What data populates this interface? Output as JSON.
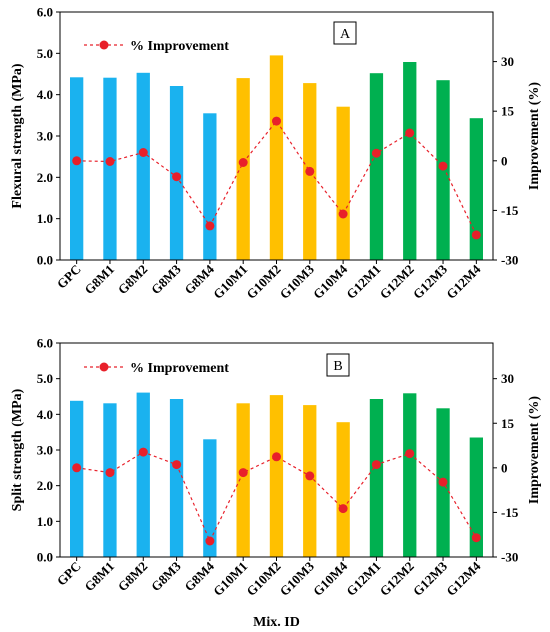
{
  "colors": {
    "G8": "#1ab2ef",
    "G10": "#ffc000",
    "G12": "#00b050",
    "line": "#e8202a"
  },
  "shared": {
    "categories": [
      "GPC",
      "G8M1",
      "G8M2",
      "G8M3",
      "G8M4",
      "G10M1",
      "G10M2",
      "G10M3",
      "G10M4",
      "G12M1",
      "G12M2",
      "G12M3",
      "G12M4"
    ],
    "group_of_category": [
      "G8",
      "G8",
      "G8",
      "G8",
      "G8",
      "G10",
      "G10",
      "G10",
      "G10",
      "G12",
      "G12",
      "G12",
      "G12"
    ],
    "xlabel": "Mix. ID"
  },
  "chart_data": [
    {
      "type": "bar",
      "panel": "A",
      "categories": [
        "GPC",
        "G8M1",
        "G8M2",
        "G8M3",
        "G8M4",
        "G10M1",
        "G10M2",
        "G10M3",
        "G10M4",
        "G12M1",
        "G12M2",
        "G12M3",
        "G12M4"
      ],
      "ylabel": "Flexural strength (MPa)",
      "ylim": [
        0,
        6
      ],
      "yticks": [
        "0.0",
        "1.0",
        "2.0",
        "3.0",
        "4.0",
        "5.0",
        "6.0"
      ],
      "y2label": "Improvement  (%)",
      "y2lim": [
        -30,
        45
      ],
      "y2ticks": [
        "-30",
        "-15",
        "0",
        "15",
        "30"
      ],
      "series": [
        {
          "kind": "bar",
          "values": [
            4.42,
            4.41,
            4.53,
            4.21,
            3.55,
            4.4,
            4.95,
            4.28,
            3.71,
            4.52,
            4.79,
            4.35,
            3.43
          ]
        },
        {
          "name": "% Improvement",
          "kind": "line",
          "axis": "right",
          "values": [
            0,
            -0.2,
            2.5,
            -4.8,
            -19.7,
            -0.5,
            12.0,
            -3.2,
            -16.1,
            2.3,
            8.4,
            -1.6,
            -22.4
          ]
        }
      ],
      "legend": "top-left"
    },
    {
      "type": "bar",
      "panel": "B",
      "categories": [
        "GPC",
        "G8M1",
        "G8M2",
        "G8M3",
        "G8M4",
        "G10M1",
        "G10M2",
        "G10M3",
        "G10M4",
        "G12M1",
        "G12M2",
        "G12M3",
        "G12M4"
      ],
      "xlabel": "Mix. ID",
      "ylabel": "Split strength (MPa)",
      "ylim": [
        0,
        6
      ],
      "yticks": [
        "0.0",
        "1.0",
        "2.0",
        "3.0",
        "4.0",
        "5.0",
        "6.0"
      ],
      "y2label": "Improvement  (%)",
      "y2lim": [
        -30,
        42
      ],
      "y2ticks": [
        "-30",
        "-15",
        "0",
        "15",
        "30"
      ],
      "series": [
        {
          "kind": "bar",
          "values": [
            4.38,
            4.31,
            4.61,
            4.43,
            3.3,
            4.31,
            4.54,
            4.26,
            3.78,
            4.43,
            4.59,
            4.17,
            3.35
          ]
        },
        {
          "name": "% Improvement",
          "kind": "line",
          "axis": "right",
          "values": [
            0,
            -1.6,
            5.3,
            1.1,
            -24.6,
            -1.6,
            3.7,
            -2.7,
            -13.7,
            1.1,
            4.8,
            -4.8,
            -23.5
          ]
        }
      ],
      "legend": "top-left"
    }
  ]
}
